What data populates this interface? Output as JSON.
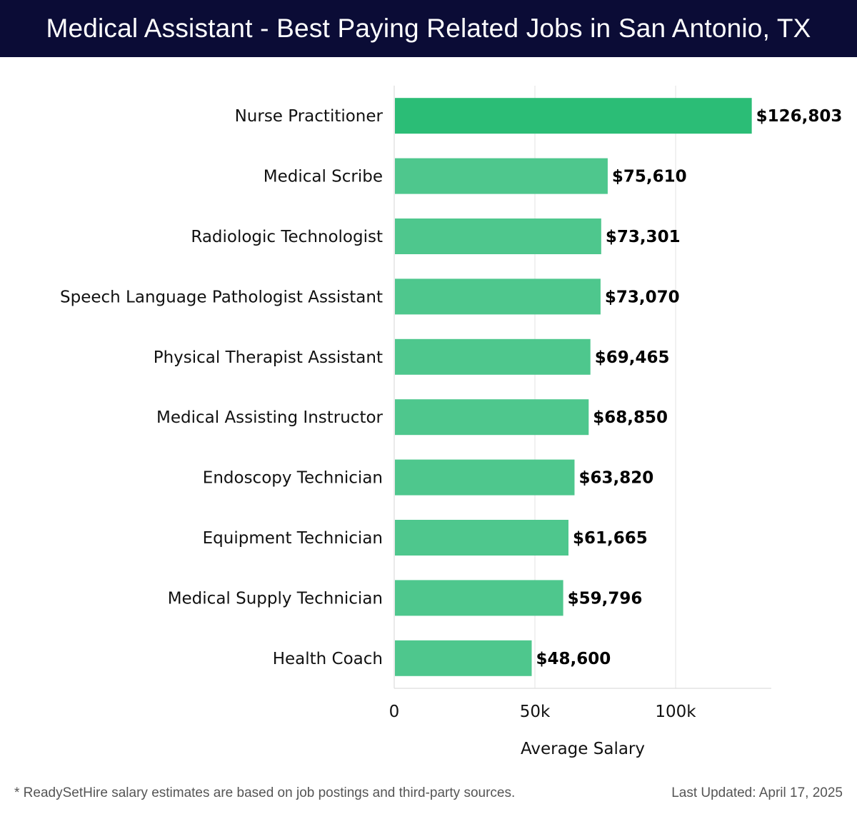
{
  "header": {
    "title": "Medical Assistant - Best Paying Related Jobs in San Antonio, TX"
  },
  "chart_data": {
    "type": "bar",
    "orientation": "horizontal",
    "categories": [
      "Nurse Practitioner",
      "Medical Scribe",
      "Radiologic Technologist",
      "Speech Language Pathologist Assistant",
      "Physical Therapist Assistant",
      "Medical Assisting Instructor",
      "Endoscopy Technician",
      "Equipment Technician",
      "Medical Supply Technician",
      "Health Coach"
    ],
    "values": [
      126803,
      75610,
      73301,
      73070,
      69465,
      68850,
      63820,
      61665,
      59796,
      48600
    ],
    "value_labels": [
      "$126,803",
      "$75,610",
      "$73,301",
      "$73,070",
      "$69,465",
      "$68,850",
      "$63,820",
      "$61,665",
      "$59,796",
      "$48,600"
    ],
    "xlabel": "Average Salary",
    "ylabel": "",
    "xlim": [
      0,
      134000
    ],
    "xticks": [
      0,
      50000,
      100000
    ],
    "xtick_labels": [
      "0",
      "50k",
      "100k"
    ],
    "grid": "vertical",
    "colors": {
      "highlight": "#2bbd76",
      "bar": "#4ec78d"
    }
  },
  "footer": {
    "note": "* ReadySetHire salary estimates are based on job postings and third-party sources.",
    "updated": "Last Updated: April 17, 2025"
  }
}
